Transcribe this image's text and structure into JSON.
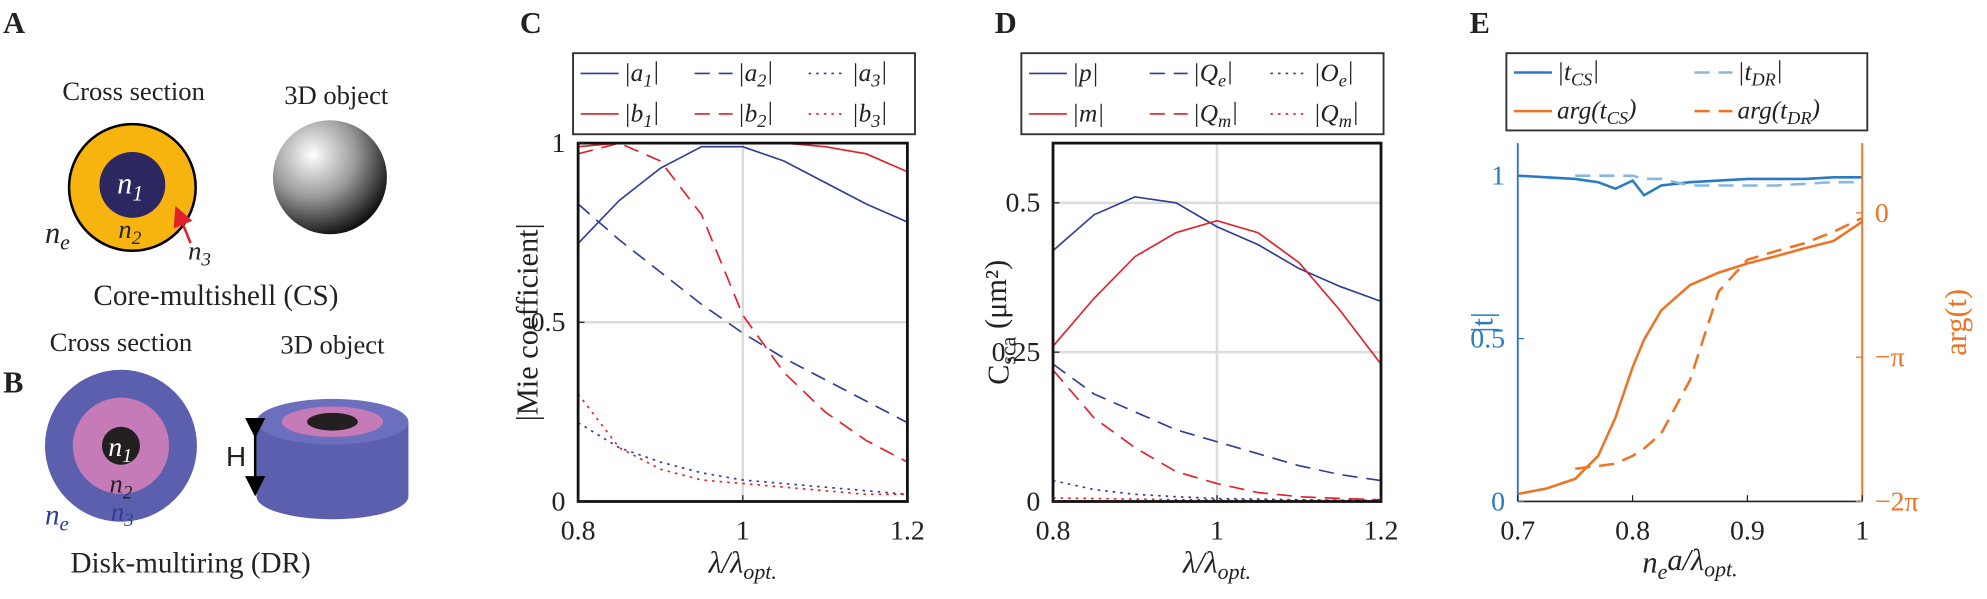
{
  "panels": {
    "A": {
      "label": "A",
      "cross_section": "Cross section",
      "object_3d": "3D object",
      "n1": [
        "n",
        "1"
      ],
      "n2": [
        "n",
        "2"
      ],
      "n3": [
        "n",
        "3"
      ],
      "ne": [
        "n",
        "e"
      ],
      "caption": "Core-multishell (CS)"
    },
    "B": {
      "label": "B",
      "cross_section": "Cross section",
      "object_3d": "3D object",
      "n1": [
        "n",
        "1"
      ],
      "n2": [
        "n",
        "2"
      ],
      "n3": [
        "n",
        "3"
      ],
      "ne": [
        "n",
        "e"
      ],
      "height": "H",
      "caption": "Disk-multiring (DR)"
    }
  },
  "chart_data": [
    {
      "type": "line",
      "label": "C",
      "ylabel": "|Mie coefficient|",
      "xlabel": [
        "λ/λ",
        "opt."
      ],
      "x": [
        0.8,
        0.85,
        0.9,
        0.95,
        1.0,
        1.05,
        1.1,
        1.15,
        1.2
      ],
      "xlim": [
        0.8,
        1.2
      ],
      "xticks": [
        0.8,
        1,
        1.2
      ],
      "ylim": [
        0,
        1
      ],
      "yticks": [
        0,
        0.5,
        1
      ],
      "grid": true,
      "frame": "box",
      "legend": "top outside",
      "series": [
        {
          "name": [
            "|a",
            "1",
            "|"
          ],
          "color": "#2f3d96",
          "dash": "solid",
          "values": [
            0.72,
            0.84,
            0.93,
            0.99,
            0.99,
            0.95,
            0.89,
            0.83,
            0.78
          ]
        },
        {
          "name": [
            "|a",
            "2",
            "|"
          ],
          "color": "#2f3d96",
          "dash": "dashed",
          "values": [
            0.83,
            0.73,
            0.64,
            0.55,
            0.47,
            0.4,
            0.34,
            0.28,
            0.22
          ]
        },
        {
          "name": [
            "|a",
            "3",
            "|"
          ],
          "color": "#2f3d96",
          "dash": "dotted",
          "values": [
            0.22,
            0.15,
            0.11,
            0.08,
            0.06,
            0.05,
            0.04,
            0.03,
            0.02
          ]
        },
        {
          "name": [
            "|b",
            "1",
            "|"
          ],
          "color": "#e0202a",
          "dash": "solid",
          "values": [
            0.99,
            1,
            1,
            1,
            1,
            1,
            0.99,
            0.97,
            0.92
          ]
        },
        {
          "name": [
            "|b",
            "2",
            "|"
          ],
          "color": "#e0202a",
          "dash": "dashed",
          "values": [
            0.97,
            1,
            0.95,
            0.8,
            0.52,
            0.36,
            0.25,
            0.17,
            0.11
          ]
        },
        {
          "name": [
            "|b",
            "3",
            "|"
          ],
          "color": "#e0202a",
          "dash": "dotted",
          "values": [
            0.3,
            0.15,
            0.09,
            0.06,
            0.05,
            0.04,
            0.03,
            0.02,
            0.02
          ]
        }
      ]
    },
    {
      "type": "line",
      "label": "D",
      "ylabel": [
        "C",
        "sca",
        " (μm²)"
      ],
      "xlabel": [
        "λ/λ",
        "opt."
      ],
      "x": [
        0.8,
        0.85,
        0.9,
        0.95,
        1.0,
        1.05,
        1.1,
        1.15,
        1.2
      ],
      "xlim": [
        0.8,
        1.2
      ],
      "xticks": [
        0.8,
        1,
        1.2
      ],
      "ylim": [
        0,
        0.6
      ],
      "yticks": [
        0,
        0.25,
        0.5
      ],
      "grid": true,
      "frame": "box",
      "legend": "top outside",
      "series": [
        {
          "name": "|p|",
          "color": "#2f3d96",
          "dash": "solid",
          "values": [
            0.42,
            0.48,
            0.51,
            0.5,
            0.46,
            0.43,
            0.39,
            0.36,
            0.335
          ]
        },
        {
          "name": [
            "|Q",
            "e",
            "|"
          ],
          "color": "#2f3d96",
          "dash": "dashed",
          "values": [
            0.23,
            0.18,
            0.15,
            0.12,
            0.1,
            0.08,
            0.06,
            0.045,
            0.035
          ]
        },
        {
          "name": [
            "|O",
            "e",
            "|"
          ],
          "color": "#2f3d96",
          "dash": "dotted",
          "values": [
            0.035,
            0.02,
            0.012,
            0.008,
            0.005,
            0.004,
            0.003,
            0.002,
            0.002
          ]
        },
        {
          "name": "|m|",
          "color": "#e0202a",
          "dash": "solid",
          "values": [
            0.26,
            0.34,
            0.41,
            0.45,
            0.47,
            0.45,
            0.4,
            0.32,
            0.23
          ]
        },
        {
          "name": [
            "|Q",
            "m",
            "|"
          ],
          "color": "#e0202a",
          "dash": "dashed",
          "values": [
            0.22,
            0.14,
            0.09,
            0.05,
            0.03,
            0.015,
            0.008,
            0.005,
            0.003
          ]
        },
        {
          "name": [
            "|Q",
            "m",
            "|"
          ],
          "color": "#e0202a",
          "dash": "dotted",
          "values": [
            0.006,
            0.005,
            0.004,
            0.003,
            0.003,
            0.002,
            0.002,
            0.002,
            0.002
          ]
        }
      ]
    },
    {
      "type": "line",
      "label": "E",
      "ylabel": "|t|",
      "y2label": "arg(t)",
      "xlabel": [
        "n",
        "e",
        "a/λ",
        "opt."
      ],
      "x": [
        0.7,
        0.725,
        0.75,
        0.77,
        0.785,
        0.8,
        0.81,
        0.825,
        0.85,
        0.875,
        0.9,
        0.925,
        0.95,
        0.975,
        1.0
      ],
      "xlim": [
        0.7,
        1
      ],
      "xticks": [
        0.7,
        0.8,
        0.9,
        1
      ],
      "ylim": [
        0,
        1.1
      ],
      "yticks": [
        0,
        0.5,
        1
      ],
      "y2lim": [
        -6.2832,
        1.52
      ],
      "y2ticks": [
        {
          "value": -6.2832,
          "label": "−2π"
        },
        {
          "value": -3.1416,
          "label": "−π"
        },
        0
      ],
      "ycolor": "#2b7bc1",
      "y2color": "#ec7424",
      "grid": false,
      "frame": "axes",
      "legend": "top outside",
      "series": [
        {
          "name": [
            "|t",
            "CS",
            "|"
          ],
          "color": "#2b7bc1",
          "dash": "solid",
          "values": [
            1.0,
            0.995,
            0.99,
            0.98,
            0.96,
            0.985,
            0.94,
            0.97,
            0.98,
            0.985,
            0.99,
            0.99,
            0.99,
            0.995,
            0.995
          ]
        },
        {
          "name": [
            "|t",
            "DR",
            "|"
          ],
          "color": "#86b8e4",
          "dash": "dashed",
          "values": [
            null,
            null,
            1.0,
            1.0,
            1.0,
            1.0,
            0.99,
            0.99,
            0.97,
            0.97,
            0.97,
            0.97,
            0.975,
            0.98,
            0.98
          ]
        },
        {
          "name": [
            "arg(t",
            "CS",
            ")"
          ],
          "color": "#ec7424",
          "dash": "solid",
          "axis": "y2",
          "values": [
            -6.12,
            -6.0,
            -5.79,
            -5.29,
            -4.46,
            -3.36,
            -2.76,
            -2.12,
            -1.57,
            -1.3,
            -1.1,
            -0.94,
            -0.77,
            -0.61,
            -0.19
          ]
        },
        {
          "name": [
            "arg(t",
            "DR",
            ")"
          ],
          "color": "#ec7424",
          "dash": "dashed",
          "axis": "y2",
          "values": [
            null,
            null,
            -5.57,
            -5.51,
            -5.46,
            -5.29,
            -5.13,
            -4.8,
            -3.64,
            -1.71,
            -1.02,
            -0.83,
            -0.66,
            -0.41,
            -0.11
          ]
        }
      ]
    }
  ]
}
